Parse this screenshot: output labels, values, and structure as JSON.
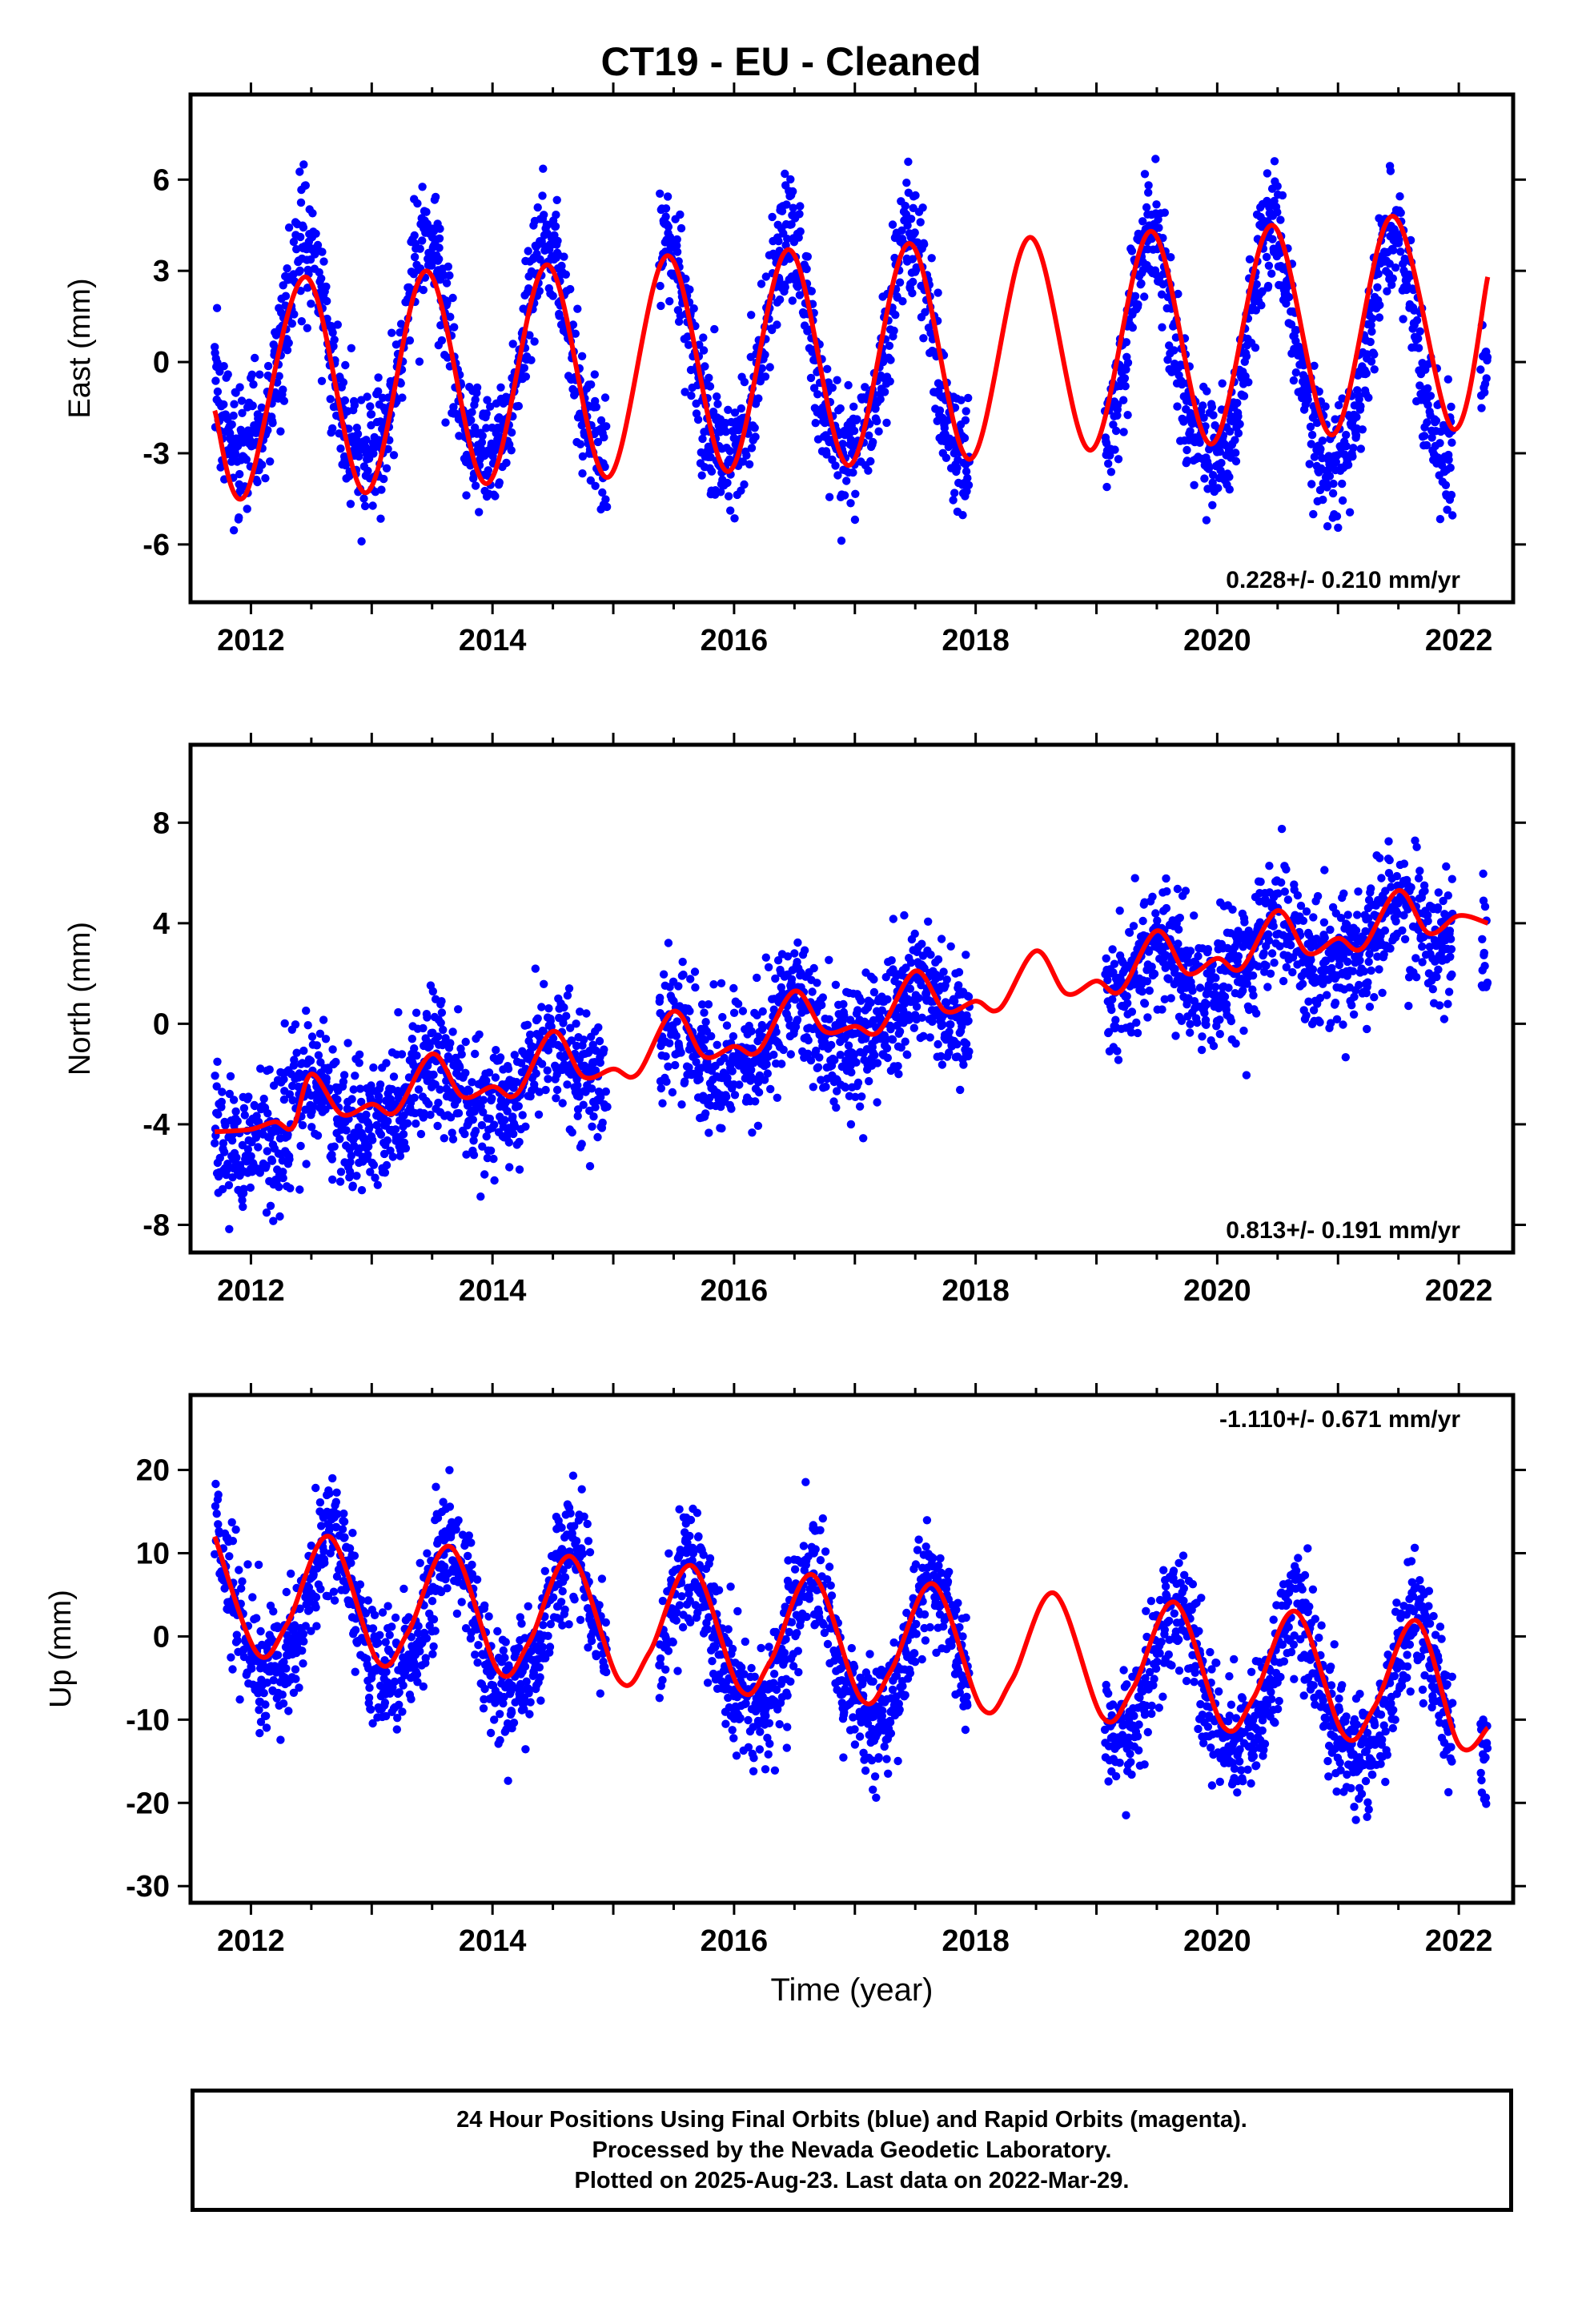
{
  "title": "CT19  - EU - Cleaned",
  "colors": {
    "final_orbits": "#0000ff",
    "model_fit": "#ff0000",
    "frame": "#000000"
  },
  "chart_data": [
    {
      "type": "scatter",
      "component": "east",
      "ylabel": "East (mm)",
      "xlabel": "",
      "xlim": [
        2011.5,
        2022.45
      ],
      "ylim": [
        -7.9,
        8.8
      ],
      "yticks": [
        -6,
        -3,
        0,
        3,
        6
      ],
      "xticks": [
        2012,
        2014,
        2016,
        2018,
        2020,
        2022
      ],
      "rate_label": "0.228+/- 0.210 mm/yr",
      "rate_position": "bottom-right",
      "grid": false,
      "data_segments": [
        [
          2011.7,
          2014.95
        ],
        [
          2015.38,
          2017.95
        ],
        [
          2019.07,
          2021.95
        ],
        [
          2022.18,
          2022.24
        ]
      ],
      "series": [
        {
          "kind": "scatter",
          "color": "blue",
          "x_start": 2011.7,
          "x_end": 2022.24,
          "trend": 0.0,
          "annual_amp": 3.6,
          "annual_peak": 2012.45,
          "semiannual_amp": 0.6,
          "noise_sd": 1.0
        },
        {
          "kind": "line",
          "color": "red",
          "fit_points": [
            [
              2011.7,
              -1.6
            ],
            [
              2011.95,
              -4.4
            ],
            [
              2012.45,
              2.8
            ],
            [
              2012.95,
              -4.3
            ],
            [
              2013.45,
              3.0
            ],
            [
              2013.95,
              -4.0
            ],
            [
              2014.45,
              3.2
            ],
            [
              2014.95,
              -3.8
            ],
            [
              2015.45,
              3.5
            ],
            [
              2015.95,
              -3.6
            ],
            [
              2016.45,
              3.7
            ],
            [
              2016.95,
              -3.4
            ],
            [
              2017.45,
              3.9
            ],
            [
              2017.95,
              -3.2
            ],
            [
              2018.45,
              4.1
            ],
            [
              2018.95,
              -2.9
            ],
            [
              2019.45,
              4.3
            ],
            [
              2019.95,
              -2.7
            ],
            [
              2020.45,
              4.5
            ],
            [
              2020.95,
              -2.4
            ],
            [
              2021.45,
              4.8
            ],
            [
              2021.95,
              -2.2
            ],
            [
              2022.24,
              2.8
            ]
          ]
        }
      ]
    },
    {
      "type": "scatter",
      "component": "north",
      "ylabel": "North (mm)",
      "xlabel": "",
      "xlim": [
        2011.5,
        2022.45
      ],
      "ylim": [
        -9.1,
        11.1
      ],
      "yticks": [
        -8,
        -4,
        0,
        4,
        8
      ],
      "xticks": [
        2012,
        2014,
        2016,
        2018,
        2020,
        2022
      ],
      "rate_label": "0.813+/- 0.191 mm/yr",
      "rate_position": "bottom-right",
      "grid": false,
      "data_segments": [
        [
          2011.7,
          2014.95
        ],
        [
          2015.38,
          2017.95
        ],
        [
          2019.07,
          2021.95
        ],
        [
          2022.18,
          2022.24
        ]
      ],
      "series": [
        {
          "kind": "scatter",
          "color": "blue",
          "x_start": 2011.7,
          "x_end": 2022.24,
          "trend": 0.81,
          "annual_amp": 1.0,
          "annual_peak": 2012.5,
          "semiannual_amp": 0.3,
          "noise_sd": 1.3
        },
        {
          "kind": "line",
          "color": "red",
          "fit_points": [
            [
              2011.7,
              -4.3
            ],
            [
              2012.0,
              -4.2
            ],
            [
              2012.2,
              -3.9
            ],
            [
              2012.35,
              -4.1
            ],
            [
              2012.5,
              -2.0
            ],
            [
              2012.75,
              -3.6
            ],
            [
              2013.0,
              -3.2
            ],
            [
              2013.2,
              -3.5
            ],
            [
              2013.5,
              -1.2
            ],
            [
              2013.75,
              -2.9
            ],
            [
              2014.0,
              -2.5
            ],
            [
              2014.2,
              -2.8
            ],
            [
              2014.5,
              -0.3
            ],
            [
              2014.75,
              -2.1
            ],
            [
              2015.0,
              -1.8
            ],
            [
              2015.2,
              -2.0
            ],
            [
              2015.5,
              0.5
            ],
            [
              2015.75,
              -1.3
            ],
            [
              2016.0,
              -0.9
            ],
            [
              2016.2,
              -1.1
            ],
            [
              2016.5,
              1.3
            ],
            [
              2016.75,
              -0.3
            ],
            [
              2017.0,
              -0.1
            ],
            [
              2017.2,
              -0.3
            ],
            [
              2017.5,
              2.1
            ],
            [
              2017.75,
              0.5
            ],
            [
              2018.0,
              0.9
            ],
            [
              2018.2,
              0.6
            ],
            [
              2018.5,
              2.9
            ],
            [
              2018.75,
              1.2
            ],
            [
              2019.0,
              1.7
            ],
            [
              2019.2,
              1.3
            ],
            [
              2019.5,
              3.7
            ],
            [
              2019.75,
              2.0
            ],
            [
              2020.0,
              2.6
            ],
            [
              2020.2,
              2.2
            ],
            [
              2020.5,
              4.5
            ],
            [
              2020.75,
              2.8
            ],
            [
              2021.0,
              3.4
            ],
            [
              2021.2,
              3.0
            ],
            [
              2021.5,
              5.3
            ],
            [
              2021.75,
              3.6
            ],
            [
              2022.0,
              4.3
            ],
            [
              2022.24,
              4.0
            ]
          ]
        }
      ]
    },
    {
      "type": "scatter",
      "component": "up",
      "ylabel": "Up (mm)",
      "xlabel": "Time (year)",
      "xlim": [
        2011.5,
        2022.45
      ],
      "ylim": [
        -32,
        29
      ],
      "yticks": [
        -30,
        -20,
        -10,
        0,
        10,
        20
      ],
      "xticks": [
        2012,
        2014,
        2016,
        2018,
        2020,
        2022
      ],
      "rate_label": "-1.110+/- 0.671 mm/yr",
      "rate_position": "top-right",
      "grid": false,
      "data_segments": [
        [
          2011.7,
          2014.95
        ],
        [
          2015.38,
          2017.95
        ],
        [
          2019.07,
          2021.95
        ],
        [
          2022.18,
          2022.24
        ]
      ],
      "series": [
        {
          "kind": "scatter",
          "color": "blue",
          "x_start": 2011.7,
          "x_end": 2022.24,
          "trend": -1.11,
          "annual_amp": 8.5,
          "annual_peak": 2012.65,
          "semiannual_amp": 1.5,
          "noise_sd": 3.5
        },
        {
          "kind": "line",
          "color": "red",
          "fit_points": [
            [
              2011.7,
              12.0
            ],
            [
              2012.05,
              -2.0
            ],
            [
              2012.3,
              1.5
            ],
            [
              2012.65,
              12.0
            ],
            [
              2013.05,
              -3.0
            ],
            [
              2013.3,
              0.5
            ],
            [
              2013.65,
              10.8
            ],
            [
              2014.05,
              -4.2
            ],
            [
              2014.3,
              -0.8
            ],
            [
              2014.65,
              9.6
            ],
            [
              2015.05,
              -5.3
            ],
            [
              2015.3,
              -1.9
            ],
            [
              2015.65,
              8.5
            ],
            [
              2016.05,
              -6.4
            ],
            [
              2016.3,
              -3.0
            ],
            [
              2016.65,
              7.4
            ],
            [
              2017.05,
              -7.5
            ],
            [
              2017.3,
              -4.1
            ],
            [
              2017.65,
              6.3
            ],
            [
              2018.05,
              -8.6
            ],
            [
              2018.3,
              -5.2
            ],
            [
              2018.65,
              5.2
            ],
            [
              2019.05,
              -9.7
            ],
            [
              2019.3,
              -6.3
            ],
            [
              2019.65,
              4.1
            ],
            [
              2020.05,
              -10.8
            ],
            [
              2020.3,
              -7.4
            ],
            [
              2020.65,
              3.0
            ],
            [
              2021.05,
              -11.9
            ],
            [
              2021.3,
              -8.5
            ],
            [
              2021.65,
              1.9
            ],
            [
              2022.0,
              -13.0
            ],
            [
              2022.24,
              -11.0
            ]
          ]
        }
      ]
    }
  ],
  "footer": {
    "line1": "24 Hour Positions Using Final Orbits (blue) and Rapid Orbits (magenta).",
    "line2": "Processed by the Nevada Geodetic Laboratory.",
    "line3": "Plotted on 2025-Aug-23. Last data on 2022-Mar-29."
  }
}
